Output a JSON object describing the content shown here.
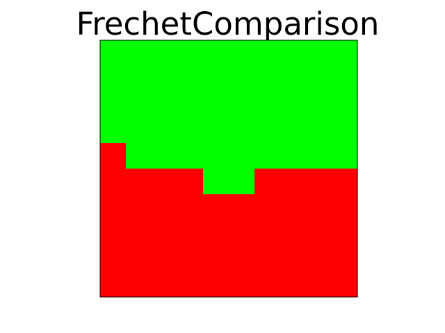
{
  "chart_data": {
    "type": "heatmap",
    "title": "FrechetComparison",
    "xlabel": "",
    "ylabel": "",
    "grid": false,
    "rows": 10,
    "cols": 10,
    "legend": [
      {
        "value": 1,
        "label": "",
        "color": "#00ff00"
      },
      {
        "value": 0,
        "label": "",
        "color": "#ff0000"
      }
    ],
    "values": [
      [
        1,
        1,
        1,
        1,
        1,
        1,
        1,
        1,
        1,
        1
      ],
      [
        1,
        1,
        1,
        1,
        1,
        1,
        1,
        1,
        1,
        1
      ],
      [
        1,
        1,
        1,
        1,
        1,
        1,
        1,
        1,
        1,
        1
      ],
      [
        1,
        1,
        1,
        1,
        1,
        1,
        1,
        1,
        1,
        1
      ],
      [
        0,
        1,
        1,
        1,
        1,
        1,
        1,
        1,
        1,
        1
      ],
      [
        0,
        0,
        0,
        0,
        1,
        1,
        0,
        0,
        0,
        0
      ],
      [
        0,
        0,
        0,
        0,
        0,
        0,
        0,
        0,
        0,
        0
      ],
      [
        0,
        0,
        0,
        0,
        0,
        0,
        0,
        0,
        0,
        0
      ],
      [
        0,
        0,
        0,
        0,
        0,
        0,
        0,
        0,
        0,
        0
      ],
      [
        0,
        0,
        0,
        0,
        0,
        0,
        0,
        0,
        0,
        0
      ]
    ]
  }
}
